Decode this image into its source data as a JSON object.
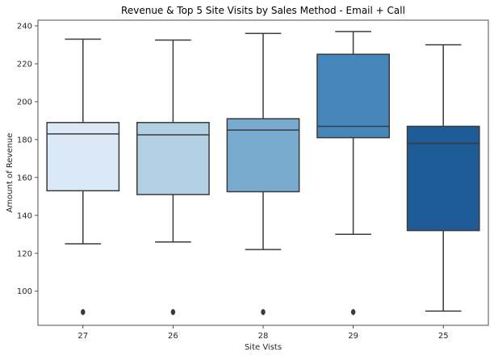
{
  "chart_data": {
    "type": "box",
    "title": "Revenue & Top 5 Site Visits by Sales Method - Email + Call",
    "xlabel": "Site Vists",
    "ylabel": "Amount of Revenue",
    "categories": [
      "27",
      "26",
      "28",
      "29",
      "25"
    ],
    "ylim": [
      82,
      243
    ],
    "yticks": [
      100,
      120,
      140,
      160,
      180,
      200,
      220,
      240
    ],
    "grid": false,
    "boxes": [
      {
        "category": "27",
        "whisker_low": 125,
        "q1": 153,
        "median": 183,
        "q3": 189,
        "whisker_high": 233,
        "outliers": [
          89
        ]
      },
      {
        "category": "26",
        "whisker_low": 126,
        "q1": 151,
        "median": 182.5,
        "q3": 189,
        "whisker_high": 232.5,
        "outliers": [
          89
        ]
      },
      {
        "category": "28",
        "whisker_low": 122,
        "q1": 152.5,
        "median": 185,
        "q3": 191,
        "whisker_high": 236,
        "outliers": [
          89
        ]
      },
      {
        "category": "29",
        "whisker_low": 130,
        "q1": 181,
        "median": 187,
        "q3": 225,
        "whisker_high": 237,
        "outliers": [
          89
        ]
      },
      {
        "category": "25",
        "whisker_low": 89.5,
        "q1": 132,
        "median": 178,
        "q3": 187,
        "whisker_high": 230,
        "outliers": []
      }
    ],
    "colors": [
      "#dbe8f5",
      "#b3cfe2",
      "#78abce",
      "#4786bb",
      "#1f5b96"
    ],
    "line_color": "#3b3b3b"
  }
}
